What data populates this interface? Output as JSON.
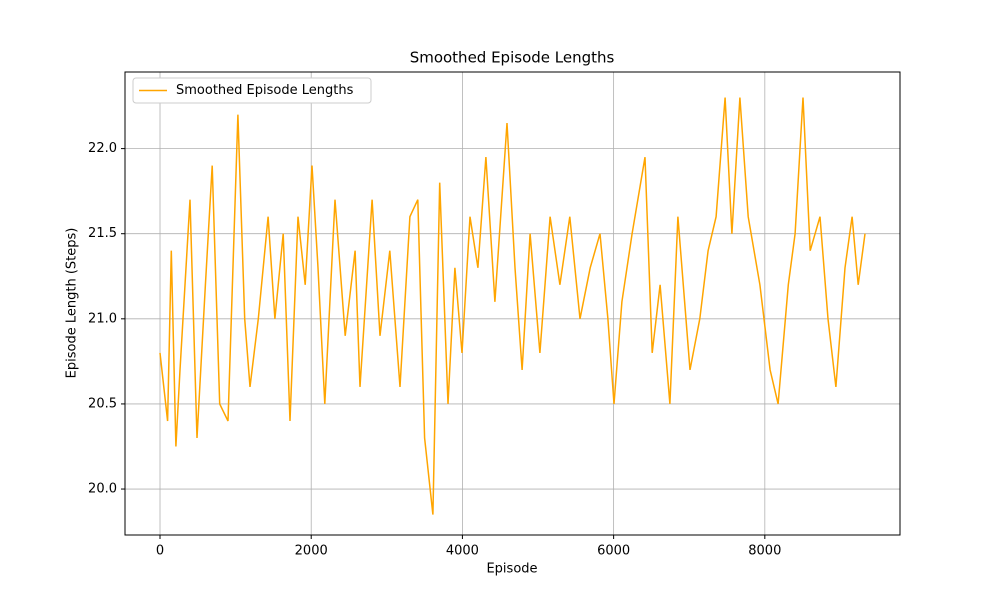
{
  "chart_data": {
    "type": "line",
    "title": "Smoothed Episode Lengths",
    "x_label": "Episode",
    "y_label": "Episode Length (Steps)",
    "x": [
      0,
      100,
      150,
      210,
      265,
      330,
      397,
      490,
      600,
      690,
      790,
      900,
      1030,
      1120,
      1190,
      1300,
      1430,
      1520,
      1630,
      1720,
      1825,
      1920,
      2010,
      2090,
      2180,
      2315,
      2450,
      2580,
      2645,
      2805,
      2910,
      3040,
      3175,
      3305,
      3410,
      3500,
      3610,
      3700,
      3810,
      3900,
      3995,
      4100,
      4205,
      4310,
      4430,
      4590,
      4695,
      4790,
      4895,
      5025,
      5160,
      5290,
      5420,
      5555,
      5690,
      5820,
      5925,
      6005,
      6110,
      6245,
      6415,
      6510,
      6615,
      6745,
      6850,
      7010,
      7140,
      7250,
      7355,
      7475,
      7565,
      7670,
      7780,
      7935,
      8070,
      8175,
      8310,
      8400,
      8505,
      8600,
      8730,
      8835,
      8940,
      9060,
      9155,
      9235,
      9325
    ],
    "series": [
      {
        "name": "Smoothed Episode Lengths",
        "color": "#ffa500",
        "values": [
          20.8,
          20.4,
          21.4,
          20.25,
          20.7,
          21.2,
          21.7,
          20.3,
          21.2,
          21.9,
          20.5,
          20.4,
          22.2,
          21.0,
          20.6,
          21.0,
          21.6,
          21.0,
          21.5,
          20.4,
          21.6,
          21.2,
          21.9,
          21.3,
          20.5,
          21.7,
          20.9,
          21.4,
          20.6,
          21.7,
          20.9,
          21.4,
          20.6,
          21.6,
          21.7,
          20.3,
          19.85,
          21.8,
          20.5,
          21.3,
          20.8,
          21.6,
          21.3,
          21.95,
          21.1,
          22.15,
          21.3,
          20.7,
          21.5,
          20.8,
          21.6,
          21.2,
          21.6,
          21.0,
          21.3,
          21.5,
          21.0,
          20.5,
          21.1,
          21.5,
          21.95,
          20.8,
          21.2,
          20.5,
          21.6,
          20.7,
          21.0,
          21.4,
          21.6,
          22.3,
          21.5,
          22.3,
          21.6,
          21.2,
          20.7,
          20.5,
          21.2,
          21.5,
          22.3,
          21.4,
          21.6,
          21.0,
          20.6,
          21.3,
          21.6,
          21.2,
          21.5
        ]
      }
    ],
    "xlim": [
      -463,
      9788
    ],
    "ylim": [
      19.73,
      22.45
    ],
    "xticks": [
      0,
      2000,
      4000,
      6000,
      8000
    ],
    "yticks": [
      {
        "value": 20,
        "label": "20.0"
      },
      20.5,
      {
        "value": 21,
        "label": "21.0"
      },
      21.5,
      {
        "value": 22,
        "label": "22.0"
      }
    ],
    "grid": true,
    "legend": "upper left"
  }
}
